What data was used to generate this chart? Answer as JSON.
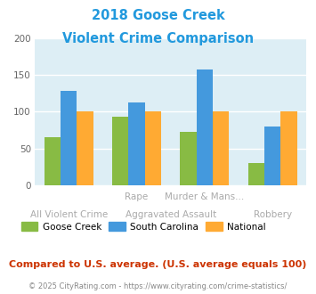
{
  "title_line1": "2018 Goose Creek",
  "title_line2": "Violent Crime Comparison",
  "title_color": "#2299dd",
  "cat_labels_row1": [
    "",
    "Rape",
    "Murder & Mans...",
    ""
  ],
  "cat_labels_row2": [
    "All Violent Crime",
    "Aggravated Assault",
    "",
    "Robbery"
  ],
  "goose_creek": [
    65,
    93,
    73,
    30
  ],
  "south_carolina": [
    128,
    113,
    157,
    80
  ],
  "national": [
    100,
    100,
    100,
    100
  ],
  "color_goose": "#88bb44",
  "color_sc": "#4499dd",
  "color_national": "#ffaa33",
  "ylim": [
    0,
    200
  ],
  "yticks": [
    0,
    50,
    100,
    150,
    200
  ],
  "bg_color": "#ddeef5",
  "footer_text": "Compared to U.S. average. (U.S. average equals 100)",
  "footer_color": "#cc3300",
  "copyright_text": "© 2025 CityRating.com - https://www.cityrating.com/crime-statistics/",
  "copyright_color": "#888888",
  "label_color": "#aaaaaa",
  "bar_width": 0.24
}
